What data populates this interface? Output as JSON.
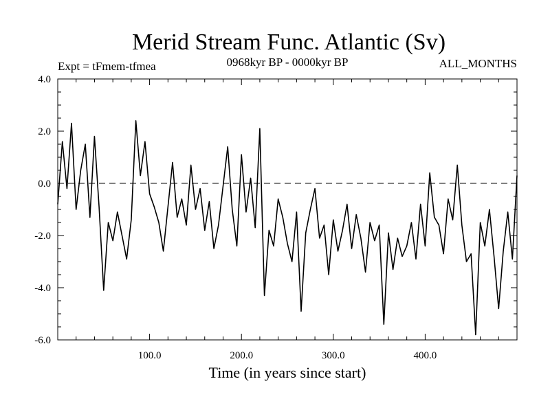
{
  "chart_data": {
    "type": "line",
    "title": "Merid Stream Func. Atlantic (Sv)",
    "subtitle_left": "Expt = tFmem-tfmea",
    "subtitle_center": "0968kyr BP - 0000kyr BP",
    "subtitle_right": "ALL_MONTHS",
    "xlabel": "Time (in years since start)",
    "ylabel": "",
    "xlim": [
      0,
      500
    ],
    "ylim": [
      -6,
      4
    ],
    "xticks": [
      100,
      200,
      300,
      400
    ],
    "xtick_labels": [
      "100.0",
      "200.0",
      "300.0",
      "400.0"
    ],
    "yticks": [
      4,
      2,
      0,
      -2,
      -4,
      -6
    ],
    "ytick_labels": [
      "4.0",
      "2.0",
      "0.0",
      "-2.0",
      "-4.0",
      "-6.0"
    ],
    "reference_line": {
      "y": 0,
      "style": "dashed"
    },
    "grid": false,
    "series": [
      {
        "name": "Merid Stream Func. Atlantic",
        "x": [
          0,
          5,
          10,
          15,
          20,
          25,
          30,
          35,
          40,
          45,
          50,
          55,
          60,
          65,
          70,
          75,
          80,
          85,
          90,
          95,
          100,
          105,
          110,
          115,
          120,
          125,
          130,
          135,
          140,
          145,
          150,
          155,
          160,
          165,
          170,
          175,
          180,
          185,
          190,
          195,
          200,
          205,
          210,
          215,
          220,
          225,
          230,
          235,
          240,
          245,
          250,
          255,
          260,
          265,
          270,
          275,
          280,
          285,
          290,
          295,
          300,
          305,
          310,
          315,
          320,
          325,
          330,
          335,
          340,
          345,
          350,
          355,
          360,
          365,
          370,
          375,
          380,
          385,
          390,
          395,
          400,
          405,
          410,
          415,
          420,
          425,
          430,
          435,
          440,
          445,
          450,
          455,
          460,
          465,
          470,
          475,
          480,
          485,
          490,
          495,
          500
        ],
        "values": [
          -0.8,
          1.6,
          -0.2,
          2.3,
          -1.0,
          0.5,
          1.5,
          -1.3,
          1.8,
          -0.9,
          -4.1,
          -1.5,
          -2.2,
          -1.1,
          -2.0,
          -2.9,
          -1.4,
          2.4,
          0.3,
          1.6,
          -0.4,
          -0.9,
          -1.5,
          -2.6,
          -0.9,
          0.8,
          -1.3,
          -0.6,
          -1.6,
          0.7,
          -1.0,
          -0.2,
          -1.8,
          -0.7,
          -2.5,
          -1.6,
          -0.1,
          1.4,
          -1.0,
          -2.4,
          1.1,
          -1.1,
          0.2,
          -1.7,
          2.1,
          -4.3,
          -1.8,
          -2.4,
          -0.6,
          -1.3,
          -2.3,
          -3.0,
          -1.1,
          -4.9,
          -1.9,
          -1.0,
          -0.2,
          -2.1,
          -1.6,
          -3.5,
          -1.4,
          -2.6,
          -1.8,
          -0.8,
          -2.5,
          -1.2,
          -2.1,
          -3.4,
          -1.5,
          -2.2,
          -1.6,
          -5.4,
          -1.9,
          -3.3,
          -2.1,
          -2.8,
          -2.4,
          -1.5,
          -2.9,
          -0.8,
          -2.4,
          0.4,
          -1.3,
          -1.6,
          -2.7,
          -0.6,
          -1.4,
          0.7,
          -1.6,
          -3.0,
          -2.7,
          -5.8,
          -1.5,
          -2.4,
          -1.0,
          -2.8,
          -4.8,
          -2.6,
          -1.1,
          -2.9,
          0.3
        ]
      }
    ]
  }
}
